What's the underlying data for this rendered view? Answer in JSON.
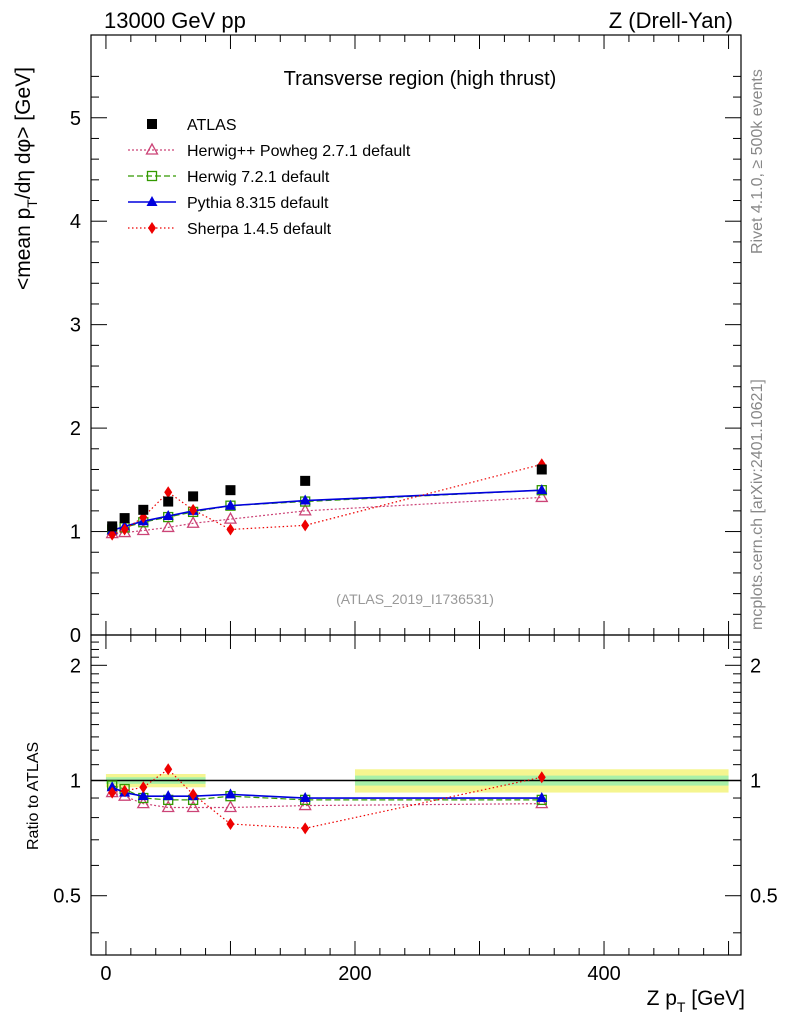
{
  "header": {
    "left": "13000 GeV pp",
    "right": "Z (Drell-Yan)"
  },
  "side_labels": {
    "rivet": "Rivet 4.1.0, ≥ 500k events",
    "mcplots": "mcplots.cern.ch [arXiv:2401.10621]"
  },
  "chart_data": {
    "type": "scatter",
    "title": "Transverse region (high thrust)",
    "watermark": "(ATLAS_2019_I1736531)",
    "xlabel": "Z p_T [GeV]",
    "ylabel": "<mean p_T/dη dφ> [GeV]",
    "ratio_ylabel": "Ratio to ATLAS",
    "xlim": [
      -12,
      510
    ],
    "ylim": [
      0,
      5.8
    ],
    "ratio_ylim": [
      0.35,
      2.4
    ],
    "x_ticks": [
      0,
      200,
      400
    ],
    "y_ticks": [
      0,
      1,
      2,
      3,
      4,
      5
    ],
    "ratio_ticks": [
      0.5,
      1,
      2
    ],
    "ratio_tick_labels": [
      "0.5",
      "1",
      "2"
    ],
    "x": [
      5,
      15,
      30,
      50,
      70,
      100,
      160,
      350
    ],
    "data_band": [
      {
        "x0": 0,
        "x1": 80,
        "inner": 0.02,
        "outer": 0.04
      },
      {
        "x0": 200,
        "x1": 500,
        "inner": 0.03,
        "outer": 0.07
      }
    ],
    "series": [
      {
        "name": "ATLAS",
        "style": "data",
        "color": "#000000",
        "values": [
          1.05,
          1.13,
          1.21,
          1.29,
          1.34,
          1.4,
          1.49,
          1.6
        ]
      },
      {
        "name": "Herwig++ Powheg 2.7.1 default",
        "style": "open-triangle",
        "color": "#cc4477",
        "dash": "2,2",
        "values": [
          0.98,
          0.99,
          1.01,
          1.04,
          1.08,
          1.12,
          1.2,
          1.33
        ],
        "ratio": [
          0.93,
          0.91,
          0.87,
          0.85,
          0.85,
          0.85,
          0.86,
          0.87
        ]
      },
      {
        "name": "Herwig 7.2.1 default",
        "style": "open-square",
        "color": "#339900",
        "dash": "6,3",
        "values": [
          1.02,
          1.04,
          1.09,
          1.14,
          1.19,
          1.25,
          1.29,
          1.4
        ],
        "ratio": [
          0.97,
          0.95,
          0.9,
          0.89,
          0.89,
          0.91,
          0.89,
          0.89
        ]
      },
      {
        "name": "Pythia 8.315 default",
        "style": "filled-triangle",
        "color": "#0000dd",
        "dash": "",
        "values": [
          1.01,
          1.05,
          1.1,
          1.15,
          1.2,
          1.25,
          1.3,
          1.4
        ],
        "ratio": [
          0.96,
          0.93,
          0.91,
          0.91,
          0.91,
          0.92,
          0.9,
          0.9
        ]
      },
      {
        "name": "Sherpa 1.4.5 default",
        "style": "diamond",
        "color": "#ee0000",
        "dash": "1.5,2.5",
        "values": [
          0.97,
          1.02,
          1.14,
          1.38,
          1.21,
          1.02,
          1.06,
          1.65
        ],
        "ratio": [
          0.93,
          0.94,
          0.96,
          1.07,
          0.92,
          0.77,
          0.75,
          1.02
        ]
      }
    ]
  }
}
